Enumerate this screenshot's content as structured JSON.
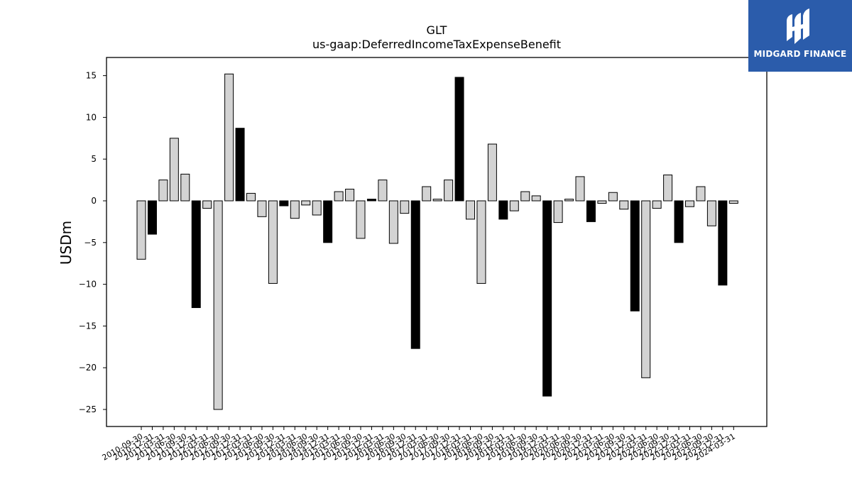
{
  "chart_data": {
    "type": "bar",
    "title": "GLT",
    "subtitle": "us-gaap:DeferredIncomeTaxExpenseBenefit",
    "ylabel": "USDm",
    "xlabel": "",
    "ylim": [
      -27,
      17.2
    ],
    "yticks": [
      15,
      10,
      5,
      0,
      -5,
      -10,
      -15,
      -20,
      -25
    ],
    "ytick_labels": [
      "15",
      "10",
      "5",
      "0",
      "−5",
      "−10",
      "−15",
      "−20",
      "−25"
    ],
    "grid": false,
    "categories": [
      "2010-09-30",
      "2010-12-31",
      "2011-03-31",
      "2011-06-30",
      "2011-09-30",
      "2011-12-31",
      "2012-03-31",
      "2012-06-30",
      "2012-09-30",
      "2012-12-31",
      "2013-03-31",
      "2013-06-30",
      "2013-09-30",
      "2013-12-31",
      "2014-03-31",
      "2014-06-30",
      "2014-09-30",
      "2014-12-31",
      "2015-03-31",
      "2015-06-30",
      "2015-09-30",
      "2015-12-31",
      "2016-03-31",
      "2016-06-30",
      "2016-09-30",
      "2016-12-31",
      "2017-03-31",
      "2017-06-30",
      "2017-09-30",
      "2017-12-31",
      "2018-03-31",
      "2018-06-30",
      "2018-09-30",
      "2018-12-31",
      "2019-03-31",
      "2019-06-30",
      "2019-09-30",
      "2019-12-31",
      "2020-03-31",
      "2020-06-30",
      "2020-09-30",
      "2020-12-31",
      "2021-03-31",
      "2021-06-30",
      "2021-09-30",
      "2021-12-31",
      "2022-03-31",
      "2022-06-30",
      "2022-09-30",
      "2022-12-31",
      "2023-03-31",
      "2023-06-30",
      "2023-09-30",
      "2023-12-31",
      "2024-03-31"
    ],
    "values": [
      -7.0,
      -4.0,
      2.5,
      7.5,
      3.2,
      -12.8,
      -0.9,
      -25.0,
      15.2,
      8.7,
      0.9,
      -1.9,
      -9.9,
      -0.6,
      -2.1,
      -0.5,
      -1.7,
      -5.0,
      1.1,
      1.4,
      -4.5,
      0.2,
      2.5,
      -5.1,
      -1.5,
      -17.7,
      1.7,
      0.2,
      2.5,
      14.8,
      -2.2,
      -9.9,
      6.8,
      -2.2,
      -1.2,
      1.1,
      0.6,
      -23.4,
      -2.6,
      0.2,
      2.9,
      -2.5,
      -0.3,
      1.0,
      -1.0,
      -13.2,
      -21.2,
      -0.9,
      3.1,
      -5.0,
      -0.7,
      1.7,
      -3.0,
      -10.1,
      -0.3
    ],
    "bar_colors": {
      "quarterly": "#d3d3d3",
      "annual": "#000000",
      "edge": "#000000"
    }
  },
  "branding": {
    "logo_text": "MIDGARD FINANCE",
    "logo_bg": "#2b5cab"
  }
}
